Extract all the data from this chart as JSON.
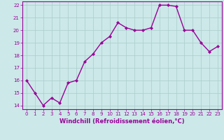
{
  "x": [
    0,
    1,
    2,
    3,
    4,
    5,
    6,
    7,
    8,
    9,
    10,
    11,
    12,
    13,
    14,
    15,
    16,
    17,
    18,
    19,
    20,
    21,
    22,
    23
  ],
  "y": [
    16.0,
    15.0,
    14.0,
    14.6,
    14.2,
    15.8,
    16.0,
    17.5,
    18.1,
    19.0,
    19.5,
    20.6,
    20.2,
    20.0,
    20.0,
    20.2,
    22.0,
    22.0,
    21.9,
    20.0,
    20.0,
    19.0,
    18.3,
    18.7
  ],
  "line_color": "#990099",
  "marker": "D",
  "marker_size": 2,
  "bg_color": "#cce8e8",
  "grid_color": "#aacccc",
  "xlabel": "Windchill (Refroidissement éolien,°C)",
  "xlabel_color": "#990099",
  "tick_color": "#990099",
  "ylim": [
    13.7,
    22.3
  ],
  "xlim": [
    -0.5,
    23.5
  ],
  "yticks": [
    14,
    15,
    16,
    17,
    18,
    19,
    20,
    21,
    22
  ],
  "xticks": [
    0,
    1,
    2,
    3,
    4,
    5,
    6,
    7,
    8,
    9,
    10,
    11,
    12,
    13,
    14,
    15,
    16,
    17,
    18,
    19,
    20,
    21,
    22,
    23
  ],
  "tick_fontsize": 5.0,
  "xlabel_fontsize": 6.0,
  "linewidth": 1.0
}
